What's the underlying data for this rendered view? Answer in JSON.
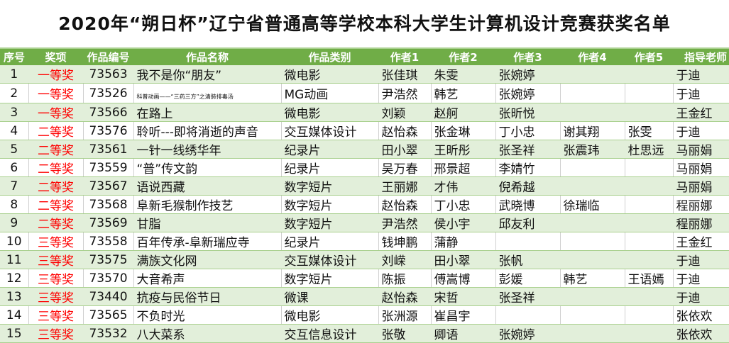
{
  "title": "2020年“朔日杯”辽宁省普通高等学校本科大学生计算机设计竞赛获奖名单",
  "columns": [
    "序号",
    "奖项",
    "作品编号",
    "作品名称",
    "作品类别",
    "作者1",
    "作者2",
    "作者3",
    "作者4",
    "作者5",
    "指导老师"
  ],
  "colors": {
    "header_bg": "#70ad47",
    "band_bg": "#e2efda",
    "award_text": "#ff0000"
  },
  "rows": [
    [
      "1",
      "一等奖",
      "73563",
      "我不是你“朋友”",
      " 微电影",
      "张佳琪",
      "朱雯",
      "张婉婷",
      "",
      "",
      "于迪"
    ],
    [
      "2",
      "一等奖",
      "73526",
      "科普动画——“三药三方”之清肺排毒汤",
      "MG动画",
      "尹浩然",
      "韩艺",
      "张婉婷",
      "",
      "",
      "于迪"
    ],
    [
      "3",
      "一等奖",
      "73566",
      "在路上",
      "微电影",
      "刘颖",
      "赵舸",
      "张昕悦",
      "",
      "",
      "王金红"
    ],
    [
      "4",
      "二等奖",
      "73576",
      "聆听---即将消逝的声音",
      "交互媒体设计",
      "赵怡森",
      "张金琳",
      "丁小忠",
      "谢其翔",
      "张雯",
      "于迪"
    ],
    [
      "5",
      "二等奖",
      "73561",
      "一针一线绣华年",
      "纪录片",
      "田小翠",
      "王昕彤",
      "张圣祥",
      "张震玮",
      "杜思远",
      "马丽娟"
    ],
    [
      "6",
      "二等奖",
      "73559",
      "“普”传文韵",
      "纪录片",
      "吴万春",
      "邢景超",
      "李婧竹",
      "",
      "",
      "马丽娟"
    ],
    [
      "7",
      "二等奖",
      "73567",
      "语说西藏",
      "数字短片",
      "王丽娜",
      "才伟",
      "倪希越",
      "",
      "",
      "马丽娟"
    ],
    [
      "8",
      "二等奖",
      "73568",
      "阜新毛猴制作技艺",
      "数字短片",
      "赵怡森",
      "丁小忠",
      "武晓博",
      "徐瑞临",
      "",
      "程丽娜"
    ],
    [
      "9",
      "二等奖",
      "73569",
      "甘脂",
      "数字短片",
      "尹浩然",
      "侯小宇",
      "邱友利",
      "",
      "",
      "程丽娜"
    ],
    [
      "10",
      "三等奖",
      "73558",
      "百年传承-阜新瑞应寺",
      "纪录片",
      "钱坤鹏",
      "蒲静",
      "",
      "",
      "",
      "王金红"
    ],
    [
      "11",
      "三等奖",
      "73575",
      "满族文化网",
      "交互媒体设计",
      "刘嵘",
      "田小翠",
      "张帆",
      "",
      "",
      "于迪"
    ],
    [
      "12",
      "三等奖",
      "73570",
      "大音希声",
      "数字短片",
      "陈振",
      "傅嵩博",
      "彭媛",
      "韩艺",
      "王语嫣",
      "于迪"
    ],
    [
      "13",
      "三等奖",
      "73440",
      "抗疫与民俗节日",
      "微课",
      "赵怡森",
      "宋哲",
      "张圣祥",
      "",
      "",
      "于迪"
    ],
    [
      "14",
      "三等奖",
      "73565",
      "不负时光",
      "微电影",
      "张洲源",
      "崔昌宇",
      "",
      "",
      "",
      "张依欢"
    ],
    [
      "15",
      "三等奖",
      "73532",
      "八大菜系",
      "交互信息设计",
      "张敬",
      "卿语",
      "张婉婷",
      "",
      "",
      "张依欢"
    ]
  ]
}
